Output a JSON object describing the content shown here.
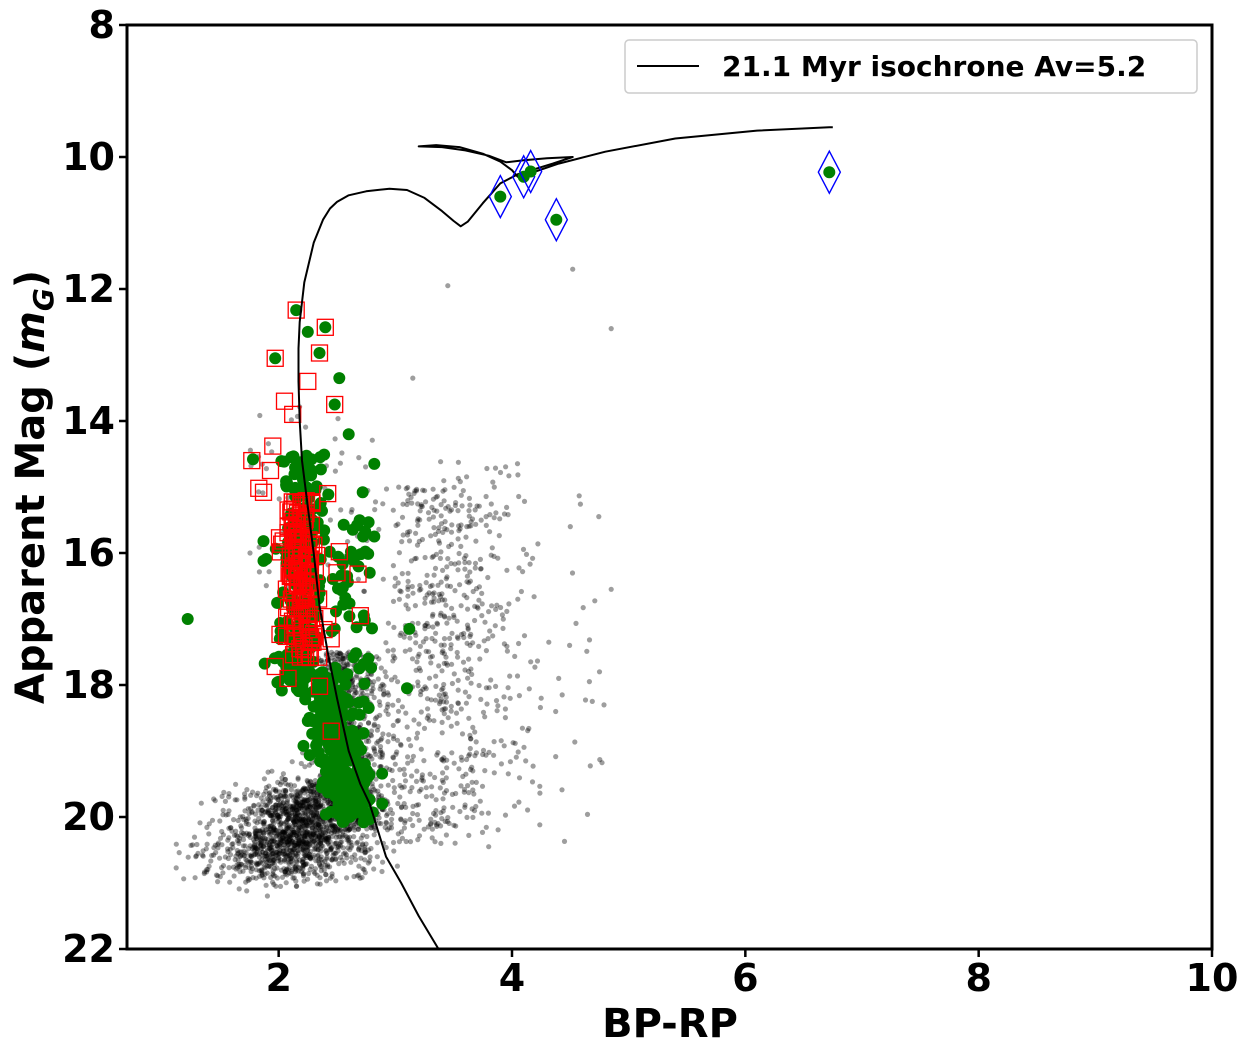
{
  "chart_data": {
    "type": "scatter",
    "xlabel": "BP-RP",
    "ylabel": "Apparent Mag (m_G)",
    "ylabel_main": "Apparent Mag (",
    "ylabel_italic": "m",
    "ylabel_sub": "G",
    "ylabel_close": ")",
    "xlim": [
      0.7,
      10
    ],
    "ylim": [
      22,
      8
    ],
    "y_inverted": true,
    "x_ticks": [
      "2",
      "4",
      "6",
      "8",
      "10"
    ],
    "y_ticks": [
      "8",
      "10",
      "12",
      "14",
      "16",
      "18",
      "20",
      "22"
    ],
    "grid": false,
    "legend_position": "top-right",
    "legend": [
      {
        "label": "21.1 Myr isochrone Av=5.2",
        "style": "black line"
      }
    ],
    "colors": {
      "field": "#000000",
      "members": "#008000",
      "square_marker": "#ff0000",
      "diamond_marker": "#0000ff",
      "isochrone": "#000000"
    },
    "isochrone": {
      "name": "21.1 Myr isochrone Av=5.2",
      "x": [
        3.37,
        3.2,
        3.05,
        2.92,
        2.85,
        2.78,
        2.7,
        2.6,
        2.5,
        2.42,
        2.35,
        2.3,
        2.25,
        2.2,
        2.18,
        2.17,
        2.17,
        2.18,
        2.22,
        2.3,
        2.38,
        2.44,
        2.5,
        2.6,
        2.75,
        2.95,
        3.1,
        3.25,
        3.4,
        3.5,
        3.56,
        3.62,
        3.75,
        3.9,
        4.05,
        4.2,
        4.35,
        4.52,
        4.3,
        4.1,
        3.95,
        3.8,
        3.6,
        3.4,
        3.2,
        3.35,
        3.55,
        3.75,
        3.9,
        4.0,
        4.05,
        4.15,
        4.4,
        4.8,
        5.4,
        6.1,
        6.72,
        6.75
      ],
      "y": [
        22.0,
        21.5,
        21.0,
        20.6,
        20.2,
        19.8,
        19.5,
        19.0,
        18.2,
        17.5,
        16.8,
        16.0,
        15.3,
        14.6,
        14.0,
        13.4,
        12.9,
        12.5,
        11.9,
        11.3,
        10.95,
        10.78,
        10.68,
        10.58,
        10.52,
        10.48,
        10.5,
        10.62,
        10.82,
        10.97,
        11.05,
        10.98,
        10.7,
        10.4,
        10.26,
        10.18,
        10.1,
        10.0,
        10.02,
        10.05,
        10.08,
        9.98,
        9.9,
        9.85,
        9.84,
        9.82,
        9.85,
        9.95,
        10.07,
        10.2,
        10.3,
        10.25,
        10.1,
        9.92,
        9.72,
        9.6,
        9.55,
        9.55
      ]
    },
    "highlighted_stars": [
      {
        "x": 3.9,
        "y": 10.6
      },
      {
        "x": 4.1,
        "y": 10.3
      },
      {
        "x": 4.16,
        "y": 10.22
      },
      {
        "x": 4.38,
        "y": 10.95
      },
      {
        "x": 6.72,
        "y": 10.23
      }
    ],
    "member_outliers": [
      {
        "x": 1.22,
        "y": 17.0
      },
      {
        "x": 2.15,
        "y": 12.32
      },
      {
        "x": 2.4,
        "y": 12.58
      },
      {
        "x": 2.25,
        "y": 12.65
      },
      {
        "x": 1.97,
        "y": 13.05
      },
      {
        "x": 2.35,
        "y": 12.97
      },
      {
        "x": 2.52,
        "y": 13.35
      },
      {
        "x": 2.48,
        "y": 13.75
      },
      {
        "x": 2.6,
        "y": 14.2
      },
      {
        "x": 2.82,
        "y": 14.65
      },
      {
        "x": 2.72,
        "y": 15.08
      },
      {
        "x": 2.82,
        "y": 15.75
      },
      {
        "x": 2.62,
        "y": 15.98
      },
      {
        "x": 2.78,
        "y": 16.3
      },
      {
        "x": 3.12,
        "y": 17.15
      },
      {
        "x": 3.1,
        "y": 18.05
      },
      {
        "x": 1.87,
        "y": 15.82
      },
      {
        "x": 1.87,
        "y": 16.12
      },
      {
        "x": 1.78,
        "y": 14.58
      }
    ],
    "annotations": [
      {
        "text": "BP-RP"
      },
      {
        "text": "21.1 Myr isochrone Av=5.2"
      }
    ]
  }
}
